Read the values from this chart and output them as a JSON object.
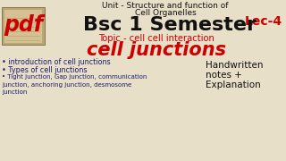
{
  "bg_color": "#e8dfc8",
  "line1": "Unit - Structure and function of",
  "line2": "Cell Organelles",
  "lec": "Lec-4",
  "bsc": "Bsc 1 Semester",
  "topic_line": "Topic - cell cell interaction",
  "main_title": "cell junctions",
  "bullet1": "• introduction of cell junctions",
  "bullet2": "• Types of cell junctions",
  "bullet3": "• Tight junction, Gap junction, communication\njunction, anchoring junction, desmosome\njunction",
  "right1": "Handwritten",
  "right2": "notes +",
  "right3": "Explanation",
  "pdf_text": "pdf",
  "pdf_color": "#cc0000",
  "red_color": "#cc0000",
  "black_color": "#111111",
  "bullet_color": "#1a1a6e",
  "pdf_bg": "#b8a878",
  "pdf_inner": "#d4c090"
}
